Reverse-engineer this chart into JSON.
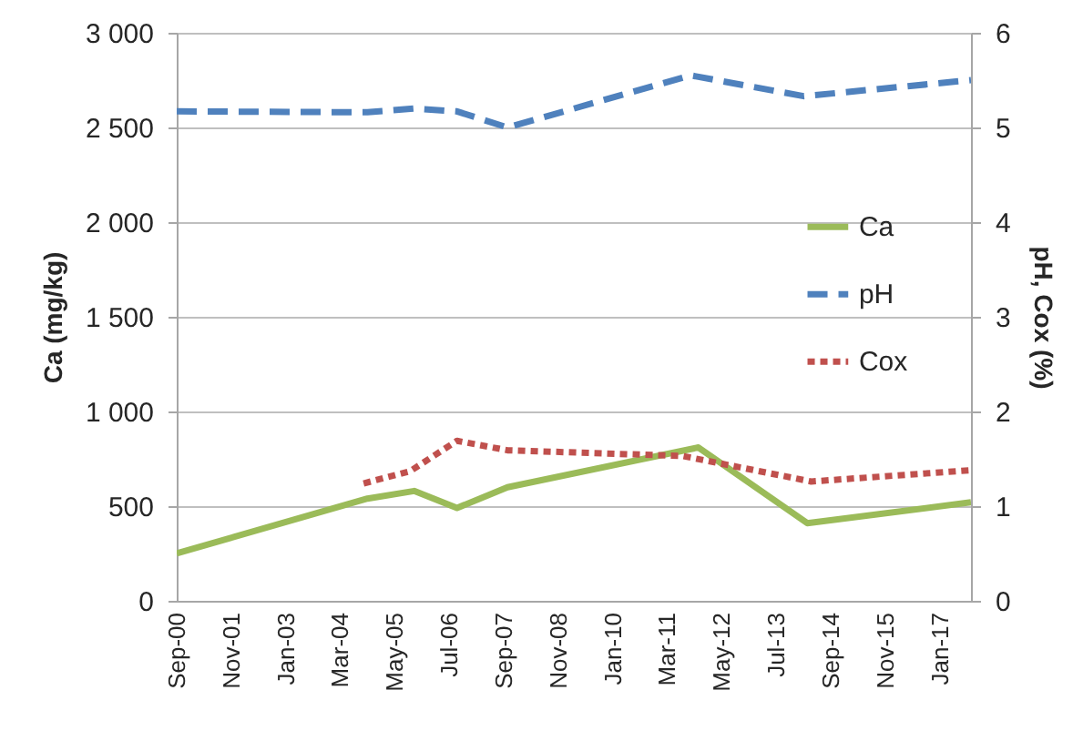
{
  "chart_data": {
    "type": "line",
    "ylabel": "Ca (mg/kg)",
    "y2label": "pH, Cox (%)",
    "xlim": [
      "2000-09",
      "2017-09"
    ],
    "xticks": [
      {
        "value": "2000-09",
        "label": "Sep-00"
      },
      {
        "value": "2001-11",
        "label": "Nov-01"
      },
      {
        "value": "2003-01",
        "label": "Jan-03"
      },
      {
        "value": "2004-03",
        "label": "Mar-04"
      },
      {
        "value": "2005-05",
        "label": "May-05"
      },
      {
        "value": "2006-07",
        "label": "Jul-06"
      },
      {
        "value": "2007-09",
        "label": "Sep-07"
      },
      {
        "value": "2008-11",
        "label": "Nov-08"
      },
      {
        "value": "2010-01",
        "label": "Jan-10"
      },
      {
        "value": "2011-03",
        "label": "Mar-11"
      },
      {
        "value": "2012-05",
        "label": "May-12"
      },
      {
        "value": "2013-07",
        "label": "Jul-13"
      },
      {
        "value": "2014-09",
        "label": "Sep-14"
      },
      {
        "value": "2015-11",
        "label": "Nov-15"
      },
      {
        "value": "2017-01",
        "label": "Jan-17"
      }
    ],
    "ylim": [
      0,
      3000
    ],
    "yticks": [
      0,
      500,
      {
        "value": 1000,
        "label": "1 000"
      },
      {
        "value": 1500,
        "label": "1 500"
      },
      {
        "value": 2000,
        "label": "2 000"
      },
      {
        "value": 2500,
        "label": "2 500"
      },
      {
        "value": 3000,
        "label": "3 000"
      }
    ],
    "y2lim": [
      0,
      6
    ],
    "y2ticks": [
      0,
      1,
      2,
      3,
      4,
      5,
      6
    ],
    "grid": "y",
    "legend": "right",
    "series": [
      {
        "name": "Ca",
        "color": "#9bbb59",
        "line_style": "solid",
        "x": [
          "2000-09",
          "2004-10",
          "2005-10",
          "2006-09",
          "2007-10",
          "2011-11",
          "2014-03",
          "2017-09"
        ],
        "values": [
          250,
          540,
          580,
          490,
          600,
          810,
          410,
          520
        ]
      },
      {
        "name": "pH",
        "color": "#4f81bd",
        "line_style": "dashed",
        "axis": "y2",
        "x": [
          "2000-09",
          "2004-10",
          "2005-10",
          "2006-09",
          "2007-10",
          "2011-09",
          "2014-02",
          "2017-09"
        ],
        "values": [
          5.17,
          5.16,
          5.2,
          5.17,
          5.0,
          5.55,
          5.33,
          5.5
        ]
      },
      {
        "name": "Cox",
        "color": "#c0504d",
        "line_style": "dotted",
        "axis": "y2",
        "x": [
          "2004-09",
          "2005-09",
          "2006-09",
          "2007-10",
          "2011-07",
          "2014-04",
          "2017-09"
        ],
        "values": [
          1.24,
          1.37,
          1.69,
          1.59,
          1.53,
          1.26,
          1.38
        ]
      }
    ]
  }
}
